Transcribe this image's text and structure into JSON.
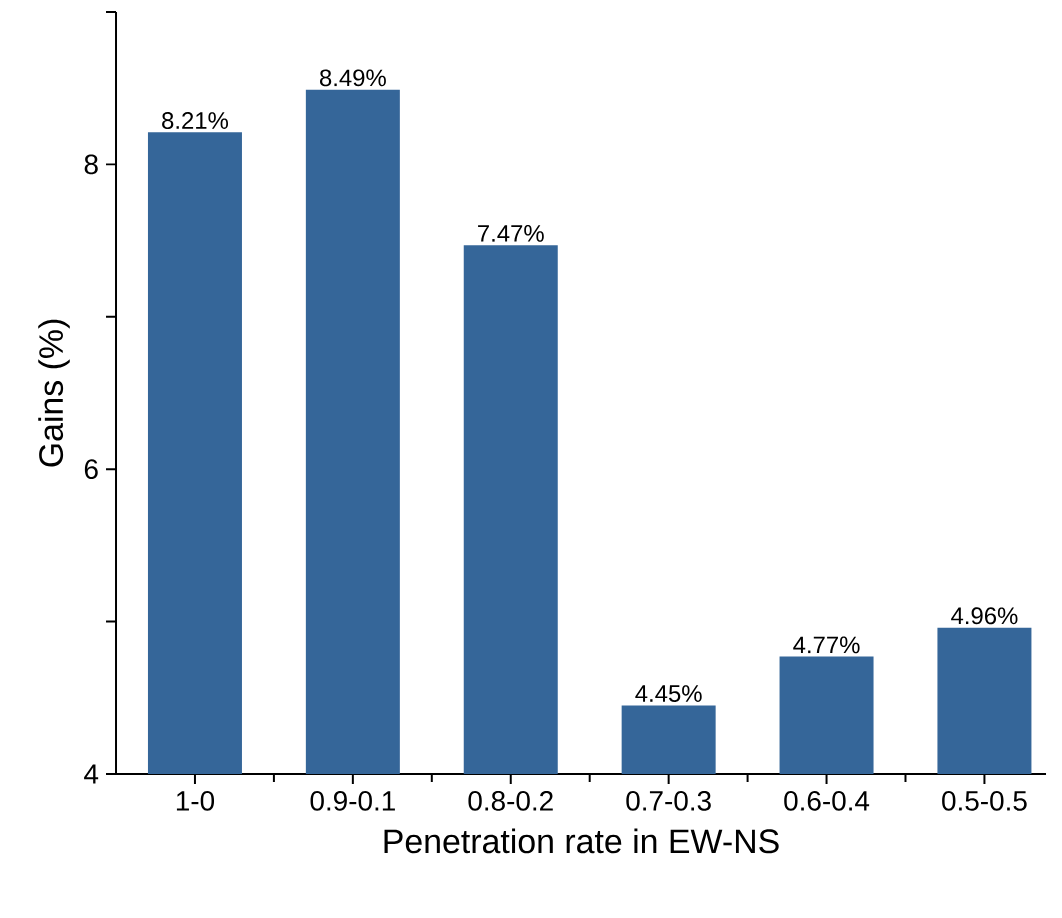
{
  "chart_data": {
    "type": "bar",
    "xlabel": "Penetration rate in EW-NS",
    "ylabel": "Gains (%)",
    "categories": [
      "1-0",
      "0.9-0.1",
      "0.8-0.2",
      "0.7-0.3",
      "0.6-0.4",
      "0.5-0.5"
    ],
    "values": [
      8.21,
      8.49,
      7.47,
      4.45,
      4.77,
      4.96
    ],
    "value_labels": [
      "8.21%",
      "8.49%",
      "7.47%",
      "4.45%",
      "4.77%",
      "4.96%"
    ],
    "color": "#356699",
    "ylim": [
      4,
      9
    ],
    "yticks": [
      4,
      {
        "value": 5,
        "label": null
      },
      6,
      {
        "value": 7,
        "label": null
      },
      8,
      {
        "value": 9,
        "label": null
      }
    ]
  }
}
